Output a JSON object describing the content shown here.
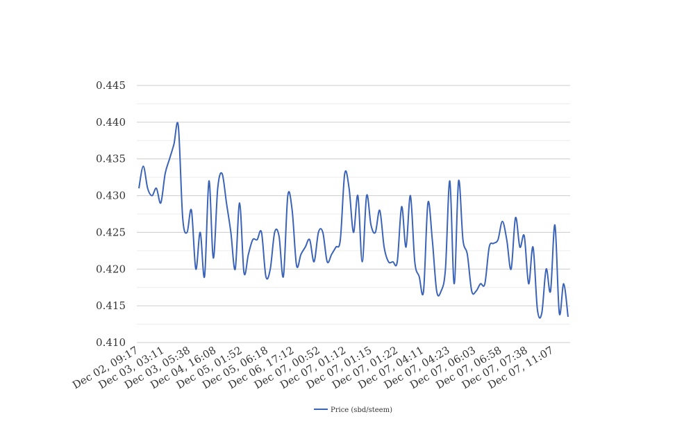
{
  "chart_data": {
    "type": "line",
    "title": "",
    "xlabel": "",
    "ylabel": "",
    "ylim": [
      0.41,
      0.445
    ],
    "y_ticks": [
      "0.410",
      "0.415",
      "0.420",
      "0.425",
      "0.430",
      "0.435",
      "0.440",
      "0.445"
    ],
    "grid": true,
    "legend_position": "bottom",
    "x_tick_labels": [
      "Dec 02, 09:17",
      "Dec 03, 03:11",
      "Dec 03, 05:38",
      "Dec 04, 16:08",
      "Dec 05, 01:52",
      "Dec 05, 06:18",
      "Dec 06, 17:12",
      "Dec 07, 00:52",
      "Dec 07, 01:12",
      "Dec 07, 01:15",
      "Dec 07, 01:22",
      "Dec 07, 04:11",
      "Dec 07, 04:23",
      "Dec 07, 06:03",
      "Dec 07, 06:58",
      "Dec 07, 07:38",
      "Dec 07, 11:07"
    ],
    "series": [
      {
        "name": "Price (sbd/steem)",
        "color": "#3a63b8",
        "values": [
          0.431,
          0.434,
          0.431,
          0.43,
          0.431,
          0.429,
          0.433,
          0.435,
          0.437,
          0.4395,
          0.427,
          0.425,
          0.428,
          0.42,
          0.425,
          0.419,
          0.432,
          0.4215,
          0.431,
          0.433,
          0.429,
          0.425,
          0.42,
          0.429,
          0.4195,
          0.422,
          0.424,
          0.424,
          0.425,
          0.419,
          0.42,
          0.425,
          0.4245,
          0.419,
          0.43,
          0.428,
          0.4205,
          0.422,
          0.423,
          0.424,
          0.421,
          0.425,
          0.425,
          0.421,
          0.422,
          0.423,
          0.424,
          0.433,
          0.431,
          0.425,
          0.43,
          0.421,
          0.43,
          0.426,
          0.425,
          0.428,
          0.423,
          0.421,
          0.421,
          0.421,
          0.4285,
          0.423,
          0.43,
          0.421,
          0.419,
          0.417,
          0.429,
          0.424,
          0.417,
          0.417,
          0.42,
          0.432,
          0.418,
          0.432,
          0.424,
          0.422,
          0.417,
          0.417,
          0.418,
          0.418,
          0.423,
          0.4235,
          0.424,
          0.4265,
          0.424,
          0.42,
          0.427,
          0.423,
          0.4245,
          0.418,
          0.423,
          0.4145,
          0.414,
          0.42,
          0.417,
          0.426,
          0.414,
          0.418,
          0.4135
        ]
      }
    ]
  }
}
